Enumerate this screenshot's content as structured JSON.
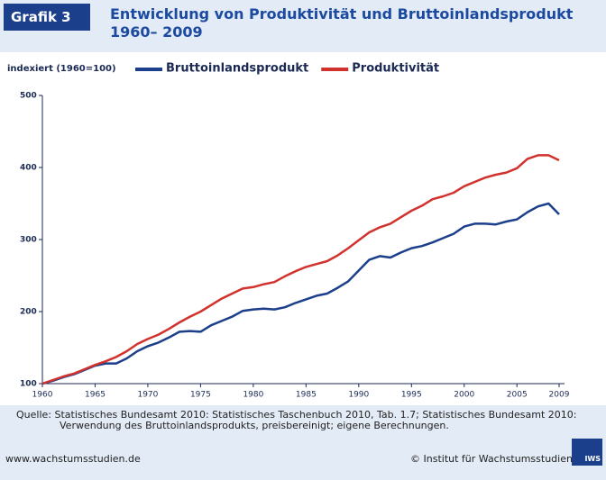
{
  "badge": "Grafik 3",
  "chart_data": {
    "type": "line",
    "title": "Entwicklung von Produktivität und Bruttoinlandsprodukt",
    "subtitle": "1960– 2009",
    "ylabel": "indexiert (1960=100)",
    "x": [
      1960,
      1961,
      1962,
      1963,
      1964,
      1965,
      1966,
      1967,
      1968,
      1969,
      1970,
      1971,
      1972,
      1973,
      1974,
      1975,
      1976,
      1977,
      1978,
      1979,
      1980,
      1981,
      1982,
      1983,
      1984,
      1985,
      1986,
      1987,
      1988,
      1989,
      1990,
      1991,
      1992,
      1993,
      1994,
      1995,
      1996,
      1997,
      1998,
      1999,
      2000,
      2001,
      2002,
      2003,
      2004,
      2005,
      2006,
      2007,
      2008,
      2009
    ],
    "series": [
      {
        "name": "Bruttoinlandsprodukt",
        "color": "#1b3f8b",
        "values": [
          100,
          104,
          109,
          113,
          119,
          125,
          128,
          128,
          135,
          145,
          152,
          157,
          164,
          172,
          173,
          172,
          181,
          187,
          193,
          201,
          203,
          204,
          203,
          206,
          212,
          217,
          222,
          225,
          233,
          242,
          257,
          272,
          277,
          275,
          282,
          288,
          291,
          296,
          302,
          308,
          318,
          322,
          322,
          321,
          325,
          328,
          338,
          346,
          350,
          335
        ]
      },
      {
        "name": "Produktivität",
        "color": "#d2322d",
        "values": [
          100,
          105,
          110,
          114,
          120,
          126,
          131,
          137,
          145,
          155,
          162,
          168,
          176,
          185,
          193,
          200,
          209,
          218,
          225,
          232,
          234,
          238,
          241,
          249,
          256,
          262,
          266,
          270,
          278,
          288,
          299,
          310,
          317,
          322,
          331,
          340,
          347,
          356,
          360,
          365,
          374,
          380,
          386,
          390,
          393,
          399,
          412,
          417,
          417,
          410
        ]
      }
    ],
    "xlim": [
      1960,
      2009
    ],
    "xticks": [
      1960,
      1965,
      1970,
      1975,
      1980,
      1985,
      1990,
      1995,
      2000,
      2005,
      2009
    ],
    "ylim": [
      100,
      500
    ],
    "yticks": [
      100,
      200,
      300,
      400,
      500
    ]
  },
  "source": "Quelle: Statistisches Bundesamt 2010: Statistisches Taschenbuch 2010, Tab. 1.7; Statistisches Bundesamt 2010: Verwendung des Bruttoinlandsprodukts, preisbereinigt; eigene Berechnungen.",
  "website": "www.wachstumsstudien.de",
  "copyright": "© Institut für Wachstumsstudien",
  "logo": "IWS"
}
